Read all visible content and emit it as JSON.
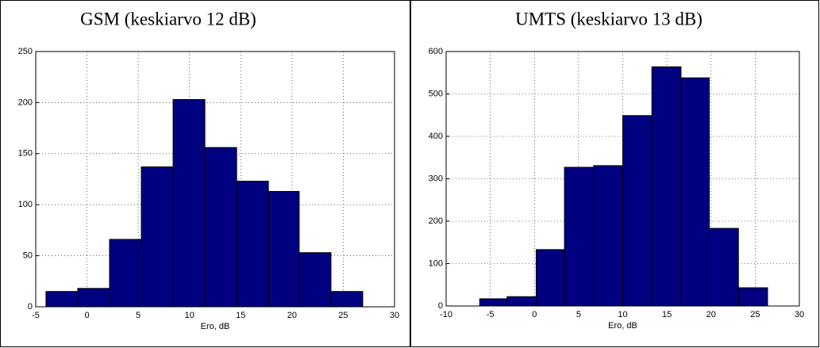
{
  "chart_data": [
    {
      "type": "histogram",
      "title": "GSM (keskiarvo 12 dB)",
      "xlabel": "Ero, dB",
      "bins": [
        -4,
        -0.9,
        2.2,
        5.3,
        8.4,
        11.5,
        14.6,
        17.7,
        20.7,
        23.8,
        26.9
      ],
      "values": [
        15,
        18,
        66,
        137,
        203,
        156,
        123,
        113,
        53,
        15
      ],
      "color": "#000080",
      "xlim": [
        -5,
        30
      ],
      "xticks": [
        -5,
        0,
        5,
        10,
        15,
        20,
        25,
        30
      ],
      "ylim": [
        0,
        250
      ],
      "yticks": [
        0,
        50,
        100,
        150,
        200,
        250
      ],
      "grid": true
    },
    {
      "type": "histogram",
      "title": "UMTS (keskiarvo 13 dB)",
      "xlabel": "Ero, dB",
      "bins": [
        -6.2,
        -3.1,
        0.2,
        3.4,
        6.7,
        10,
        13.3,
        16.6,
        19.8,
        23.1,
        26.4
      ],
      "values": [
        17,
        22,
        133,
        327,
        331,
        449,
        564,
        538,
        183,
        43
      ],
      "color": "#000080",
      "xlim": [
        -10,
        30
      ],
      "xticks": [
        -10,
        -5,
        0,
        5,
        10,
        15,
        20,
        25,
        30
      ],
      "ylim": [
        0,
        600
      ],
      "yticks": [
        0,
        100,
        200,
        300,
        400,
        500,
        600
      ],
      "grid": true
    }
  ]
}
